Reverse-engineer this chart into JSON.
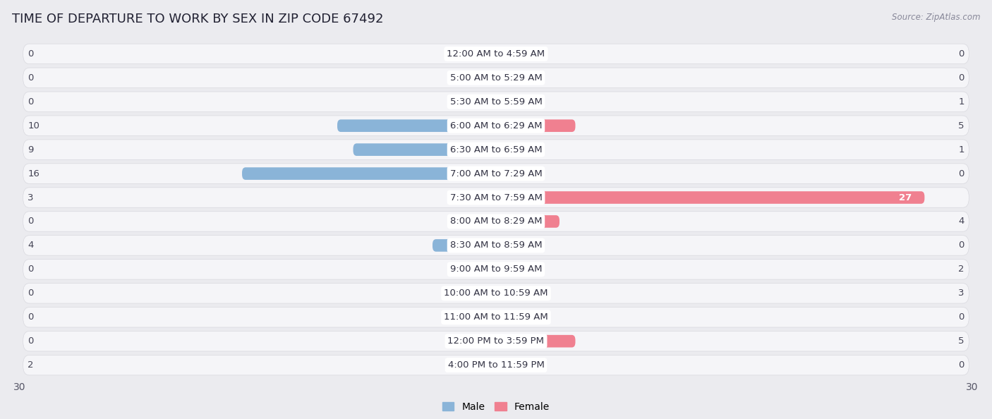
{
  "title": "TIME OF DEPARTURE TO WORK BY SEX IN ZIP CODE 67492",
  "source": "Source: ZipAtlas.com",
  "categories": [
    "12:00 AM to 4:59 AM",
    "5:00 AM to 5:29 AM",
    "5:30 AM to 5:59 AM",
    "6:00 AM to 6:29 AM",
    "6:30 AM to 6:59 AM",
    "7:00 AM to 7:29 AM",
    "7:30 AM to 7:59 AM",
    "8:00 AM to 8:29 AM",
    "8:30 AM to 8:59 AM",
    "9:00 AM to 9:59 AM",
    "10:00 AM to 10:59 AM",
    "11:00 AM to 11:59 AM",
    "12:00 PM to 3:59 PM",
    "4:00 PM to 11:59 PM"
  ],
  "male_values": [
    0,
    0,
    0,
    10,
    9,
    16,
    3,
    0,
    4,
    0,
    0,
    0,
    0,
    2
  ],
  "female_values": [
    0,
    0,
    1,
    5,
    1,
    0,
    27,
    4,
    0,
    2,
    3,
    0,
    5,
    0
  ],
  "male_color": "#8ab4d8",
  "female_color": "#f08090",
  "background_color": "#ebebef",
  "row_bg_color": "#f5f5f8",
  "xlim": 30,
  "bar_height": 0.52,
  "label_fontsize": 9.5,
  "title_fontsize": 13,
  "axis_label_fontsize": 10,
  "value_fontsize": 9.5
}
